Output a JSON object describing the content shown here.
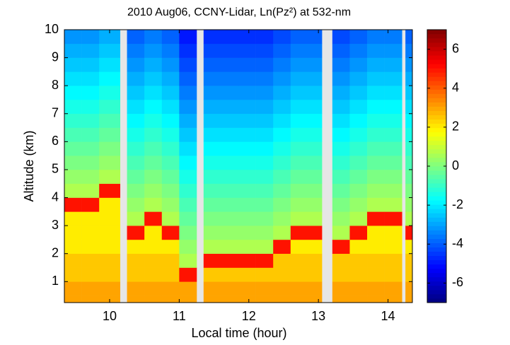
{
  "chart_data": {
    "type": "heatmap",
    "title": "2010 Aug06, CCNY-Lidar, Ln(Pz²) at 532-nm",
    "xlabel": "Local time (hour)",
    "ylabel": "Altitude (km)",
    "colormap": "jet",
    "xbins": [
      9.35,
      9.6,
      9.85,
      10.15,
      10.25,
      10.5,
      10.75,
      11.0,
      11.25,
      11.35,
      11.6,
      11.85,
      12.1,
      12.35,
      12.6,
      12.85,
      13.05,
      13.2,
      13.45,
      13.7,
      13.95,
      14.2,
      14.25,
      14.35
    ],
    "ybins": [
      0.25,
      0.5,
      1,
      1.5,
      2,
      2.5,
      3,
      3.5,
      4,
      4.5,
      5,
      5.5,
      6,
      6.5,
      7,
      7.5,
      8,
      8.5,
      9,
      9.5,
      10
    ],
    "values": [
      [
        3,
        3,
        2.5,
        2.5,
        2,
        2,
        2,
        5,
        0.65,
        0.3,
        -0.05,
        -0.4,
        -0.75,
        -1.1,
        -1.45,
        -1.8,
        -2.15,
        -2.5,
        -2.85,
        -3.2
      ],
      [
        3,
        3,
        2.5,
        2.5,
        2,
        2,
        2,
        5,
        0.65,
        0.3,
        -0.05,
        -0.4,
        -0.75,
        -1.1,
        -1.45,
        -1.8,
        -2.15,
        -2.5,
        -2.85,
        -3.2
      ],
      [
        3,
        3,
        2.5,
        2.5,
        2,
        2,
        2,
        2,
        5,
        0.65,
        0.3,
        -0.05,
        -0.4,
        -0.75,
        -1.1,
        -1.45,
        -1.8,
        -2.15,
        -2.5,
        -2.85
      ],
      [
        null,
        null,
        null,
        null,
        null,
        null,
        null,
        null,
        null,
        null,
        null,
        null,
        null,
        null,
        null,
        null,
        null,
        null,
        null,
        null
      ],
      [
        3,
        3,
        2.5,
        2.5,
        2,
        5,
        0.65,
        0.3,
        -0.05,
        -0.4,
        -0.75,
        -1.1,
        -1.45,
        -1.8,
        -2.15,
        -2.5,
        -2.85,
        -3.2,
        -3.55,
        -3.9
      ],
      [
        3,
        3,
        2.5,
        2.5,
        2,
        2,
        5,
        0.65,
        0.3,
        -0.05,
        -0.4,
        -0.75,
        -1.1,
        -1.45,
        -1.8,
        -2.15,
        -2.5,
        -2.85,
        -3.2,
        -3.55
      ],
      [
        3,
        3,
        2.5,
        2.5,
        2,
        5,
        0.65,
        0.3,
        -0.05,
        -0.4,
        -0.75,
        -1.1,
        -1.45,
        -1.8,
        -2.15,
        -2.5,
        -2.85,
        -3.2,
        -3.55,
        -3.9
      ],
      [
        3,
        3,
        5,
        0.65,
        0.3,
        -0.05,
        -0.4,
        -0.75,
        -1.1,
        -1.45,
        -1.8,
        -2.15,
        -2.5,
        -2.85,
        -3.2,
        -3.55,
        -3.9,
        -4.25,
        -4.6,
        -4.95
      ],
      [
        null,
        null,
        null,
        null,
        null,
        null,
        null,
        null,
        null,
        null,
        null,
        null,
        null,
        null,
        null,
        null,
        null,
        null,
        null,
        null
      ],
      [
        3,
        3,
        2.5,
        5,
        0.65,
        0.3,
        -0.05,
        -0.4,
        -0.75,
        -1.1,
        -1.45,
        -1.8,
        -2.15,
        -2.5,
        -2.85,
        -3.2,
        -3.55,
        -3.9,
        -4.25,
        -4.6
      ],
      [
        3,
        3,
        2.5,
        5,
        0.65,
        0.3,
        -0.05,
        -0.4,
        -0.75,
        -1.1,
        -1.45,
        -1.8,
        -2.15,
        -2.5,
        -2.85,
        -3.2,
        -3.55,
        -3.9,
        -4.25,
        -4.6
      ],
      [
        3,
        3,
        2.5,
        5,
        0.65,
        0.3,
        -0.05,
        -0.4,
        -0.75,
        -1.1,
        -1.45,
        -1.8,
        -2.15,
        -2.5,
        -2.85,
        -3.2,
        -3.55,
        -3.9,
        -4.25,
        -4.6
      ],
      [
        3,
        3,
        2.5,
        5,
        0.65,
        0.3,
        -0.05,
        -0.4,
        -0.75,
        -1.1,
        -1.45,
        -1.8,
        -2.15,
        -2.5,
        -2.85,
        -3.2,
        -3.55,
        -3.9,
        -4.25,
        -4.6
      ],
      [
        3,
        3,
        2.5,
        2.5,
        5,
        0.65,
        0.3,
        -0.05,
        -0.4,
        -0.75,
        -1.1,
        -1.45,
        -1.8,
        -2.15,
        -2.5,
        -2.85,
        -3.2,
        -3.55,
        -3.9,
        -4.25
      ],
      [
        3,
        3,
        2.5,
        2.5,
        2,
        5,
        0.65,
        0.3,
        -0.05,
        -0.4,
        -0.75,
        -1.1,
        -1.45,
        -1.8,
        -2.15,
        -2.5,
        -2.85,
        -3.2,
        -3.55,
        -3.9
      ],
      [
        3,
        3,
        2.5,
        2.5,
        2,
        5,
        0.65,
        0.3,
        -0.05,
        -0.4,
        -0.75,
        -1.1,
        -1.45,
        -1.8,
        -2.15,
        -2.5,
        -2.85,
        -3.2,
        -3.55,
        -3.9
      ],
      [
        null,
        null,
        null,
        null,
        null,
        null,
        null,
        null,
        null,
        null,
        null,
        null,
        null,
        null,
        null,
        null,
        null,
        null,
        null,
        null
      ],
      [
        3,
        3,
        2.5,
        2.5,
        5,
        0.65,
        0.3,
        -0.05,
        -0.4,
        -0.75,
        -1.1,
        -1.45,
        -1.8,
        -2.15,
        -2.5,
        -2.85,
        -3.2,
        -3.55,
        -3.9,
        -4.25
      ],
      [
        3,
        3,
        2.5,
        2.5,
        2,
        5,
        0.65,
        0.3,
        -0.05,
        -0.4,
        -0.75,
        -1.1,
        -1.45,
        -1.8,
        -2.15,
        -2.5,
        -2.85,
        -3.2,
        -3.55,
        -3.9
      ],
      [
        3,
        3,
        2.5,
        2.5,
        2,
        2,
        5,
        0.65,
        0.3,
        -0.05,
        -0.4,
        -0.75,
        -1.1,
        -1.45,
        -1.8,
        -2.15,
        -2.5,
        -2.85,
        -3.2,
        -3.55
      ],
      [
        3,
        3,
        2.5,
        2.5,
        2,
        2,
        5,
        0.65,
        0.3,
        -0.05,
        -0.4,
        -0.75,
        -1.1,
        -1.45,
        -1.8,
        -2.15,
        -2.5,
        -2.85,
        -3.2,
        -3.55
      ],
      [
        null,
        null,
        null,
        null,
        null,
        null,
        null,
        null,
        null,
        null,
        null,
        null,
        null,
        null,
        null,
        null,
        null,
        null,
        null,
        null
      ],
      [
        3,
        3,
        2.5,
        2.5,
        2,
        5,
        0.65,
        0.3,
        -0.05,
        -0.4,
        -0.75,
        -1.1,
        -1.45,
        -1.8,
        -2.15,
        -2.5,
        -2.85,
        -3.2,
        -3.55,
        -3.9
      ]
    ],
    "xlim": [
      9.35,
      14.35
    ],
    "xticks": [
      10,
      11,
      12,
      13,
      14
    ],
    "ylim": [
      0.25,
      10
    ],
    "yticks": [
      1,
      2,
      3,
      4,
      5,
      6,
      7,
      8,
      9,
      10
    ],
    "clim": [
      -7,
      7
    ],
    "cticks": [
      -6,
      -4,
      -2,
      0,
      2,
      4,
      6
    ]
  }
}
